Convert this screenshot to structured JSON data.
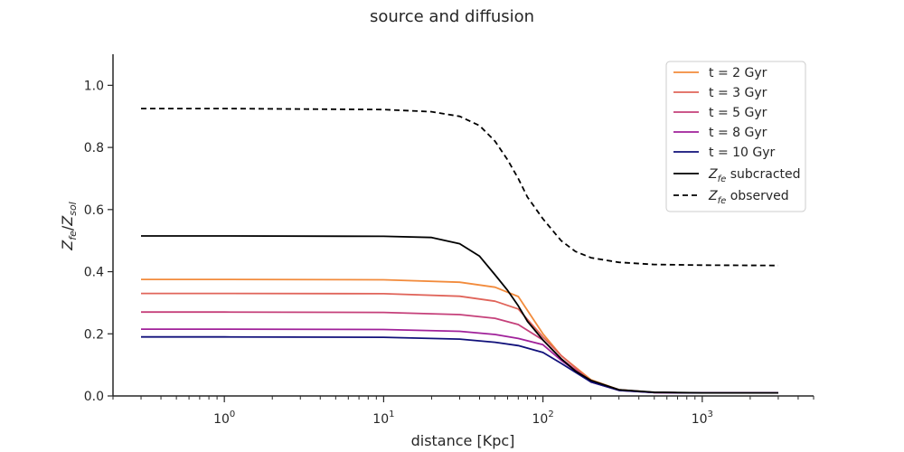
{
  "chart_data": {
    "type": "line",
    "title": "source and diffusion",
    "xlabel": "distance [Kpc]",
    "ylabel": {
      "main": "Z",
      "main_sub": "fe",
      "sep": "/",
      "den": "Z",
      "den_sub": "sol"
    },
    "xscale": "log",
    "xlim": [
      0.2,
      5000
    ],
    "ylim": [
      0,
      1.1
    ],
    "x_ticks": [
      {
        "value": 1,
        "base": "10",
        "exp": "0"
      },
      {
        "value": 10,
        "base": "10",
        "exp": "1"
      },
      {
        "value": 100,
        "base": "10",
        "exp": "2"
      },
      {
        "value": 1000,
        "base": "10",
        "exp": "3"
      }
    ],
    "y_ticks": [
      "0.0",
      "0.2",
      "0.4",
      "0.6",
      "0.8",
      "1.0"
    ],
    "legend_position": "top-right",
    "series": [
      {
        "name": "t = 2 Gyr",
        "color": "#f28b3c",
        "style": "solid",
        "x": [
          0.3,
          1,
          10,
          30,
          50,
          70,
          100,
          130,
          200,
          300,
          500,
          1000,
          3000
        ],
        "y": [
          0.375,
          0.375,
          0.374,
          0.366,
          0.35,
          0.32,
          0.2,
          0.13,
          0.052,
          0.02,
          0.011,
          0.01,
          0.01
        ]
      },
      {
        "name": "t = 3 Gyr",
        "color": "#e0645a",
        "style": "solid",
        "x": [
          0.3,
          1,
          10,
          30,
          50,
          70,
          100,
          130,
          200,
          300,
          500,
          1000,
          3000
        ],
        "y": [
          0.33,
          0.33,
          0.329,
          0.321,
          0.305,
          0.28,
          0.19,
          0.13,
          0.048,
          0.02,
          0.011,
          0.01,
          0.01
        ]
      },
      {
        "name": "t = 5 Gyr",
        "color": "#c5407a",
        "style": "solid",
        "x": [
          0.3,
          1,
          10,
          30,
          50,
          70,
          100,
          130,
          200,
          300,
          500,
          1000,
          3000
        ],
        "y": [
          0.27,
          0.27,
          0.269,
          0.262,
          0.25,
          0.23,
          0.18,
          0.12,
          0.045,
          0.019,
          0.011,
          0.01,
          0.01
        ]
      },
      {
        "name": "t = 8 Gyr",
        "color": "#a0219a",
        "style": "solid",
        "x": [
          0.3,
          1,
          10,
          30,
          50,
          70,
          100,
          130,
          200,
          300,
          500,
          1000,
          3000
        ],
        "y": [
          0.215,
          0.215,
          0.214,
          0.208,
          0.198,
          0.185,
          0.165,
          0.115,
          0.045,
          0.018,
          0.011,
          0.01,
          0.01
        ]
      },
      {
        "name": "t = 10 Gyr",
        "color": "#10107a",
        "style": "solid",
        "x": [
          0.3,
          1,
          10,
          30,
          50,
          70,
          100,
          130,
          200,
          300,
          500,
          1000,
          3000
        ],
        "y": [
          0.19,
          0.19,
          0.189,
          0.183,
          0.173,
          0.162,
          0.14,
          0.105,
          0.045,
          0.018,
          0.011,
          0.01,
          0.01
        ]
      },
      {
        "name": "subcracted",
        "legend_math": {
          "base": "Z",
          "sub": "fe"
        },
        "color": "#000000",
        "style": "solid",
        "x": [
          0.3,
          1,
          10,
          20,
          30,
          40,
          50,
          60,
          70,
          80,
          100,
          130,
          160,
          200,
          300,
          500,
          1000,
          3000
        ],
        "y": [
          0.515,
          0.515,
          0.514,
          0.51,
          0.49,
          0.45,
          0.39,
          0.34,
          0.29,
          0.24,
          0.18,
          0.12,
          0.08,
          0.05,
          0.02,
          0.012,
          0.01,
          0.01
        ]
      },
      {
        "name": "observed",
        "legend_math": {
          "base": "Z",
          "sub": "fe"
        },
        "color": "#000000",
        "style": "dashed",
        "x": [
          0.3,
          1,
          10,
          20,
          30,
          40,
          50,
          60,
          70,
          80,
          100,
          130,
          160,
          200,
          300,
          500,
          1000,
          3000
        ],
        "y": [
          0.925,
          0.925,
          0.922,
          0.915,
          0.9,
          0.87,
          0.82,
          0.76,
          0.7,
          0.64,
          0.57,
          0.5,
          0.465,
          0.445,
          0.43,
          0.423,
          0.421,
          0.42
        ]
      }
    ]
  }
}
